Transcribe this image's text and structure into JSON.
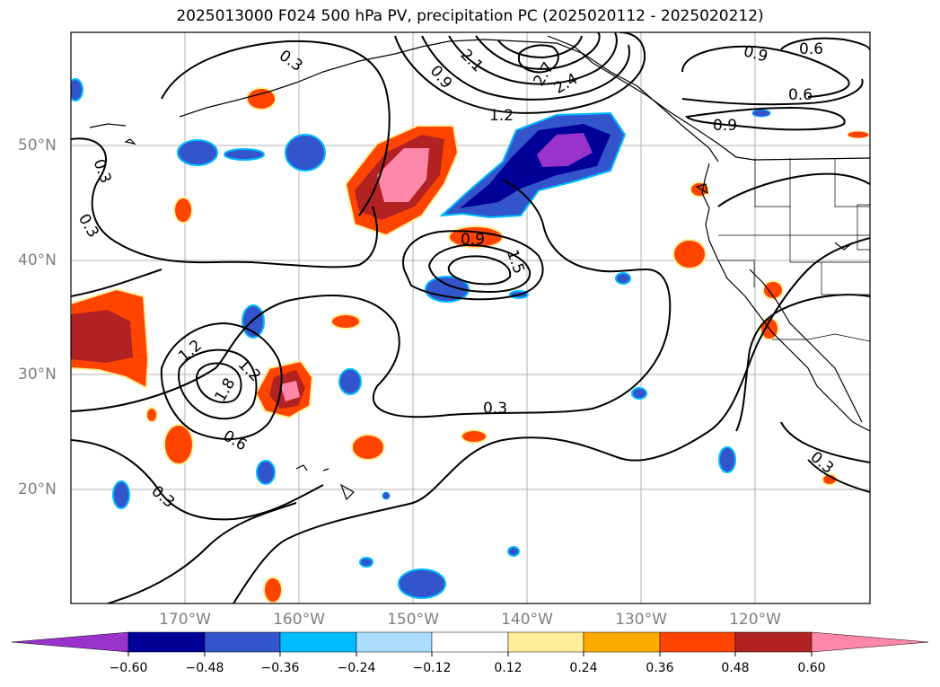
{
  "title": "2025013000 F024 500 hPa PV, precipitation PC (2025020112 - 2025020212)",
  "lon_labels": [
    "170°W",
    "160°W",
    "150°W",
    "140°W",
    "130°W",
    "120°W"
  ],
  "lat_labels": [
    "50°N",
    "40°N",
    "30°N",
    "20°N"
  ],
  "colorbar": {
    "colors": [
      "#9933cc",
      "#000099",
      "#3355cc",
      "#00bbff",
      "#aaddff",
      "#ffffff",
      "#ffee99",
      "#ffaa00",
      "#ff4400",
      "#b22222",
      "#ff88aa"
    ],
    "tick_labels": [
      "−0.60",
      "−0.48",
      "−0.36",
      "−0.24",
      "−0.12",
      "0.12",
      "0.24",
      "0.36",
      "0.48",
      "0.60"
    ]
  },
  "contour_labels": [
    "0.3",
    "0.3",
    "0.3",
    "0.3",
    "0.3",
    "0.3",
    "0.6",
    "0.6",
    "0.6",
    "0.9",
    "0.9",
    "0.9",
    "0.9",
    "1.2",
    "1.2",
    "1.2",
    "1.5",
    "1.8",
    "2.1",
    "2.4",
    "2.7"
  ]
}
